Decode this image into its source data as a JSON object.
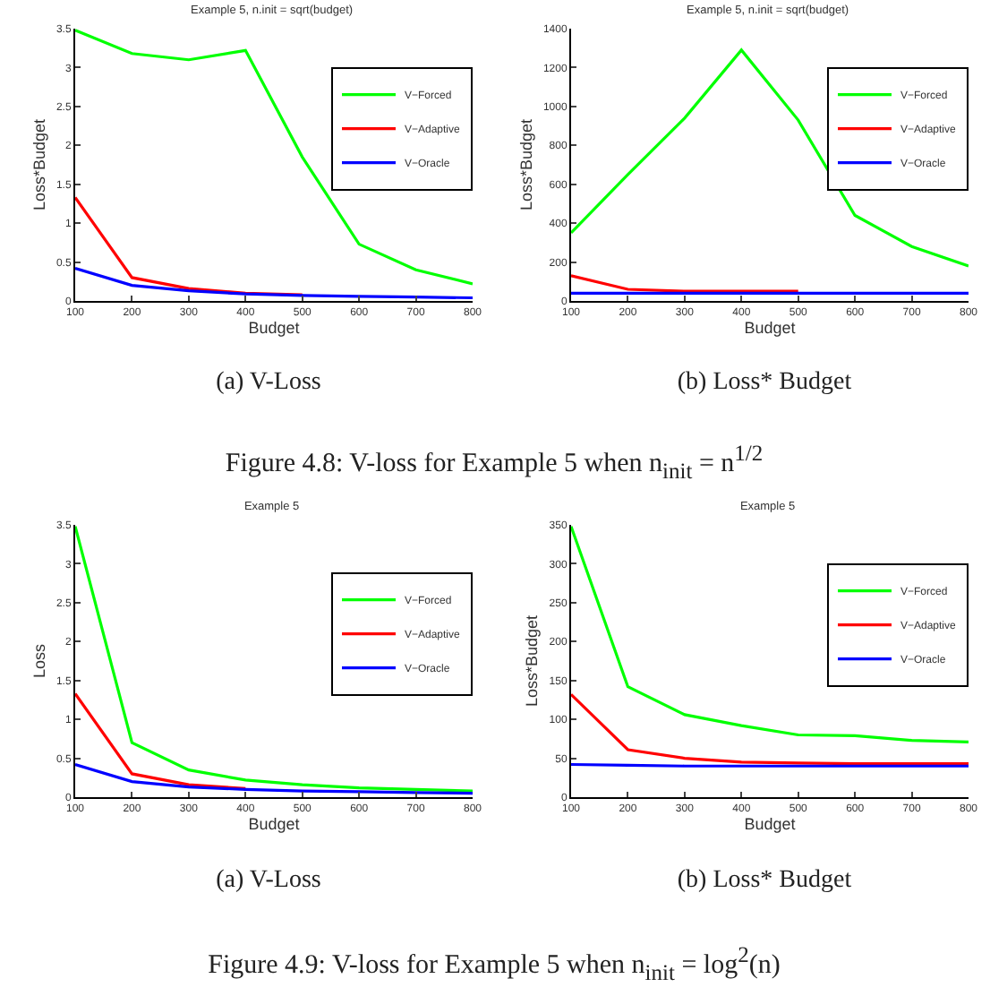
{
  "chart_data": [
    {
      "type": "line",
      "title": "Example 5, n.init = sqrt(budget)",
      "xlabel": "Budget",
      "ylabel": "Loss*Budget",
      "x": [
        100,
        200,
        300,
        400,
        500,
        600,
        700,
        800
      ],
      "xlim": [
        100,
        800
      ],
      "xticks": [
        100,
        200,
        300,
        400,
        500,
        600,
        700,
        800
      ],
      "ylim": [
        0,
        3.5
      ],
      "yticks": [
        0,
        0.5,
        1,
        1.5,
        2,
        2.5,
        3,
        3.5
      ],
      "grid": false,
      "legend": "top right",
      "annotations": [
        "(a) V-Loss",
        "Figure 4.8: V-loss for Example 5 when n$_{init}$ = n$^{1/2}$"
      ],
      "series": [
        {
          "name": "V−Forced",
          "color": "#00ff00",
          "values": [
            3.48,
            3.18,
            3.1,
            3.22,
            1.85,
            0.73,
            0.4,
            0.22
          ]
        },
        {
          "name": "V−Adaptive",
          "color": "#ff0000",
          "values": [
            1.33,
            0.3,
            0.16,
            0.1,
            0.08,
            null,
            null,
            null
          ]
        },
        {
          "name": "V−Oracle",
          "color": "#0000ff",
          "values": [
            0.42,
            0.2,
            0.13,
            0.09,
            0.07,
            0.06,
            0.05,
            0.04
          ]
        }
      ]
    },
    {
      "type": "line",
      "title": "Example 5, n.init = sqrt(budget)",
      "xlabel": "Budget",
      "ylabel": "Loss*Budget",
      "x": [
        100,
        200,
        300,
        400,
        500,
        600,
        700,
        800
      ],
      "xlim": [
        100,
        800
      ],
      "xticks": [
        100,
        200,
        300,
        400,
        500,
        600,
        700,
        800
      ],
      "ylim": [
        0,
        1400
      ],
      "yticks": [
        0,
        200,
        400,
        600,
        800,
        1000,
        1200,
        1400
      ],
      "grid": false,
      "legend": "top right",
      "annotations": [
        "(b) Loss* Budget"
      ],
      "series": [
        {
          "name": "V−Forced",
          "color": "#00ff00",
          "values": [
            350,
            650,
            940,
            1290,
            930,
            440,
            280,
            180
          ]
        },
        {
          "name": "V−Adaptive",
          "color": "#ff0000",
          "values": [
            130,
            60,
            50,
            50,
            50,
            null,
            null,
            null
          ]
        },
        {
          "name": "V−Oracle",
          "color": "#0000ff",
          "values": [
            40,
            40,
            40,
            40,
            40,
            40,
            40,
            40
          ]
        }
      ]
    },
    {
      "type": "line",
      "title": "Example 5",
      "xlabel": "Budget",
      "ylabel": "Loss",
      "x": [
        100,
        200,
        300,
        400,
        500,
        600,
        700,
        800
      ],
      "xlim": [
        100,
        800
      ],
      "xticks": [
        100,
        200,
        300,
        400,
        500,
        600,
        700,
        800
      ],
      "ylim": [
        0,
        3.5
      ],
      "yticks": [
        0,
        0.5,
        1,
        1.5,
        2,
        2.5,
        3,
        3.5
      ],
      "grid": false,
      "legend": "right",
      "annotations": [
        "(a) V-Loss",
        "Figure 4.9: V-loss for Example 5 when n$_{init}$ = log$^{2}$(n)"
      ],
      "series": [
        {
          "name": "V−Forced",
          "color": "#00ff00",
          "values": [
            3.48,
            0.7,
            0.35,
            0.22,
            0.16,
            0.12,
            0.1,
            0.08
          ]
        },
        {
          "name": "V−Adaptive",
          "color": "#ff0000",
          "values": [
            1.33,
            0.3,
            0.16,
            0.11,
            null,
            null,
            null,
            null
          ]
        },
        {
          "name": "V−Oracle",
          "color": "#0000ff",
          "values": [
            0.42,
            0.2,
            0.13,
            0.1,
            0.08,
            0.07,
            0.06,
            0.05
          ]
        }
      ]
    },
    {
      "type": "line",
      "title": "Example 5",
      "xlabel": "Budget",
      "ylabel": "Loss*Budget",
      "x": [
        100,
        200,
        300,
        400,
        500,
        600,
        700,
        800
      ],
      "xlim": [
        100,
        800
      ],
      "xticks": [
        100,
        200,
        300,
        400,
        500,
        600,
        700,
        800
      ],
      "ylim": [
        0,
        350
      ],
      "yticks": [
        0,
        50,
        100,
        150,
        200,
        250,
        300,
        350
      ],
      "grid": false,
      "legend": "top right",
      "annotations": [
        "(b) Loss* Budget"
      ],
      "series": [
        {
          "name": "V−Forced",
          "color": "#00ff00",
          "values": [
            348,
            142,
            106,
            92,
            80,
            79,
            73,
            71
          ]
        },
        {
          "name": "V−Adaptive",
          "color": "#ff0000",
          "values": [
            132,
            61,
            50,
            45,
            44,
            43,
            43,
            43
          ]
        },
        {
          "name": "V−Oracle",
          "color": "#0000ff",
          "values": [
            42,
            41,
            40,
            40,
            40,
            40,
            40,
            40
          ]
        }
      ]
    }
  ]
}
